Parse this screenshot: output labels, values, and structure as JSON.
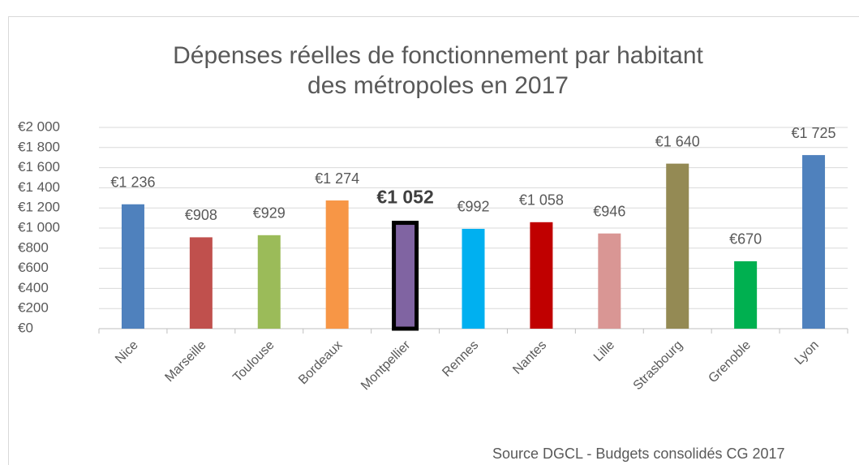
{
  "chart_data": {
    "type": "bar",
    "title": [
      "Dépenses réelles de fonctionnement par habitant",
      "des métropoles en 2017"
    ],
    "categories": [
      "Nice",
      "Marseille",
      "Toulouse",
      "Bordeaux",
      "Montpellier",
      "Rennes",
      "Nantes",
      "Lille",
      "Strasbourg",
      "Grenoble",
      "Lyon"
    ],
    "values": [
      1236,
      908,
      929,
      1274,
      1052,
      992,
      1058,
      946,
      1640,
      670,
      1725
    ],
    "value_labels": [
      "€1 236",
      "€908",
      "€929",
      "€1 274",
      "€1 052",
      "€992",
      "€1 058",
      "€946",
      "€1 640",
      "€670",
      "€1 725"
    ],
    "colors": [
      "#4f81bd",
      "#c0504d",
      "#9bbb59",
      "#f79646",
      "#8064a2",
      "#00b0f0",
      "#c00000",
      "#d99694",
      "#948a54",
      "#00b050",
      "#4f81bd"
    ],
    "highlight_index": 4,
    "ylim": [
      0,
      2000
    ],
    "yticks": [
      {
        "value": 0,
        "label": "€0"
      },
      {
        "value": 200,
        "label": "€200"
      },
      {
        "value": 400,
        "label": "€400"
      },
      {
        "value": 600,
        "label": "€600"
      },
      {
        "value": 800,
        "label": "€800"
      },
      {
        "value": 1000,
        "label": "€1 000"
      },
      {
        "value": 1200,
        "label": "€1 200"
      },
      {
        "value": 1400,
        "label": "€1 400"
      },
      {
        "value": 1600,
        "label": "€1 600"
      },
      {
        "value": 1800,
        "label": "€1 800"
      },
      {
        "value": 2000,
        "label": "€2 000"
      }
    ],
    "grid": true,
    "source": "Source DGCL - Budgets consolidés CG 2017"
  }
}
